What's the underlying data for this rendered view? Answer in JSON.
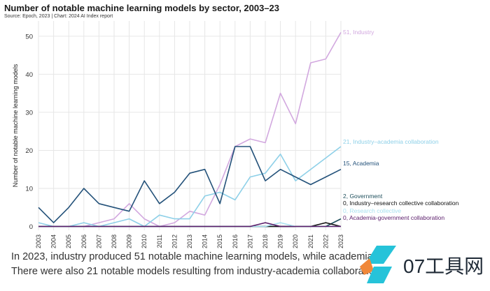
{
  "chart_data": {
    "type": "line",
    "title": "Number of notable machine learning models by sector, 2003–23",
    "source": "Source: Epoch, 2023 | Chart: 2024 AI Index report",
    "xlabel": "",
    "ylabel": "Number of notable machine learning models",
    "ylim": [
      -1,
      54
    ],
    "yticks": [
      0,
      10,
      20,
      30,
      40,
      50
    ],
    "categories": [
      "2003",
      "2004",
      "2005",
      "2006",
      "2007",
      "2008",
      "2009",
      "2010",
      "2011",
      "2012",
      "2013",
      "2014",
      "2015",
      "2016",
      "2017",
      "2018",
      "2019",
      "2020",
      "2021",
      "2022",
      "2023"
    ],
    "grid": true,
    "series": [
      {
        "name": "Industry",
        "end_label": "51, Industry",
        "color": "#d2a8df",
        "values": [
          0,
          0,
          0,
          0,
          1,
          2,
          6,
          2,
          0,
          1,
          4,
          3,
          11,
          21,
          23,
          22,
          35,
          27,
          43,
          44,
          51
        ]
      },
      {
        "name": "Industry–academia collaboration",
        "end_label": "21, Industry–academia collaboration",
        "color": "#8ed0e8",
        "values": [
          1,
          0,
          0,
          1,
          0,
          1,
          2,
          0,
          3,
          2,
          2,
          8,
          9,
          7,
          13,
          14,
          19,
          12,
          15,
          18,
          21
        ]
      },
      {
        "name": "Academia",
        "end_label": "15, Academia",
        "color": "#24527a",
        "values": [
          5,
          1,
          5,
          10,
          6,
          5,
          4,
          12,
          6,
          9,
          14,
          15,
          6,
          21,
          21,
          12,
          15,
          13,
          11,
          13,
          15
        ]
      },
      {
        "name": "Government",
        "end_label": "2, Government",
        "color": "#1e4f5c",
        "values": [
          0,
          0,
          0,
          0,
          0,
          0,
          0,
          0,
          0,
          0,
          0,
          0,
          0,
          0,
          0,
          0,
          0,
          0,
          0,
          0,
          2
        ]
      },
      {
        "name": "Industry–research collective collaboration",
        "end_label": "0, Industry–research collective collaboration",
        "color": "#111111",
        "values": [
          0,
          0,
          0,
          0,
          0,
          0,
          0,
          0,
          0,
          0,
          0,
          0,
          0,
          0,
          0,
          0,
          0,
          0,
          0,
          1,
          0
        ]
      },
      {
        "name": "Research collective",
        "end_label": "0, Research collective",
        "color": "#a9e2f0",
        "values": [
          0,
          0,
          0,
          0,
          0,
          0,
          0,
          0,
          0,
          0,
          0,
          0,
          0,
          0,
          0,
          0,
          1,
          0,
          0,
          0,
          0
        ]
      },
      {
        "name": "Academia-government collaboration",
        "end_label": "0, Academia-government collaboration",
        "color": "#5b1d6b",
        "values": [
          0,
          0,
          0,
          0,
          0,
          0,
          0,
          0,
          0,
          0,
          0,
          0,
          0,
          0,
          0,
          1,
          0,
          0,
          0,
          0,
          0
        ]
      }
    ]
  },
  "captions": {
    "line1": "In 2023, industry produced 51 notable machine learning models, while academia",
    "line2": "There were also 21 notable models resulting from industry-academia collaboration"
  },
  "watermark": {
    "text": "07工具网",
    "colors": {
      "orange": "#f0883a",
      "cyan": "#26c3d9"
    }
  }
}
